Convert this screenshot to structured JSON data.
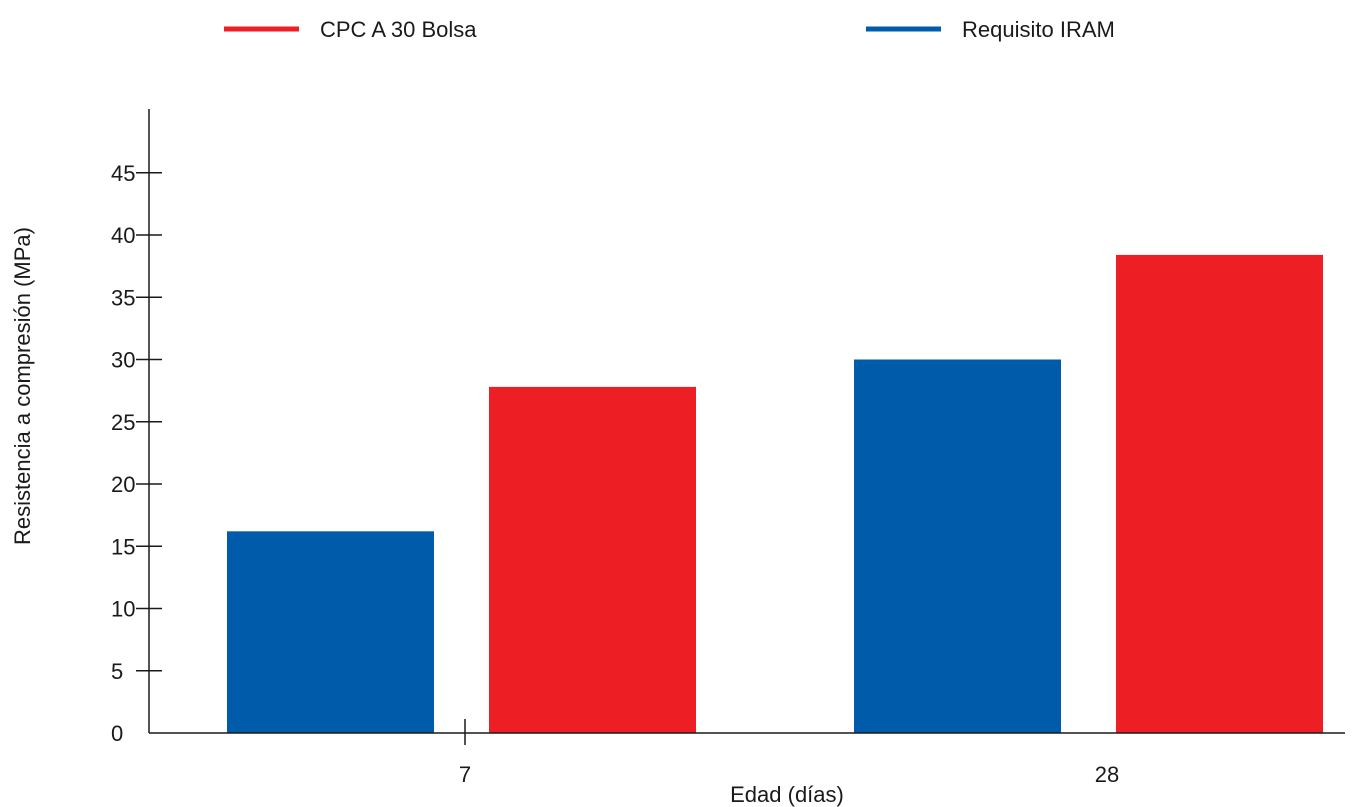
{
  "chart_data": {
    "type": "bar",
    "categories": [
      "7",
      "28"
    ],
    "series": [
      {
        "name": "Requisito IRAM",
        "color": "#005BAA",
        "values": [
          16.2,
          30
        ]
      },
      {
        "name": "CPC A 30 Bolsa",
        "color": "#ED1F24",
        "values": [
          27.8,
          38.4
        ]
      }
    ],
    "xlabel": "Edad (días)",
    "ylabel": "Resistencia a compresión (MPa)",
    "ylim": [
      0,
      49
    ],
    "yticks": [
      0,
      5,
      10,
      15,
      20,
      25,
      30,
      35,
      40,
      45
    ],
    "legend": {
      "position": "top",
      "order": [
        "CPC A 30 Bolsa",
        "Requisito IRAM"
      ]
    },
    "grid": false
  }
}
